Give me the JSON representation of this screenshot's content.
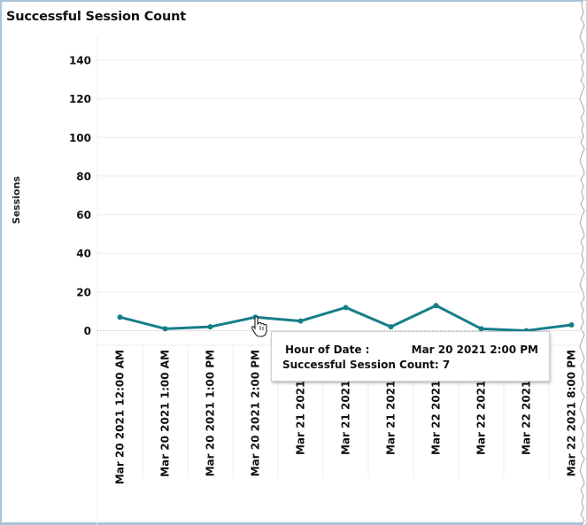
{
  "tooltip": {
    "label1": "Hour of Date :",
    "value1": "Mar 20 2021 2:00 PM",
    "label2": "Successful Session Count:",
    "value2": "7"
  },
  "cursor_icon": "hand-pointer-icon",
  "colors": {
    "line": "#167e8a",
    "grid": "#ececec",
    "zero_line": "#b5b5b5"
  },
  "chart_data": {
    "type": "line",
    "title": "Successful Session Count",
    "xlabel": "",
    "ylabel": "Sessions",
    "ylim": [
      0,
      140
    ],
    "yticks": [
      0,
      20,
      40,
      60,
      80,
      100,
      120,
      140
    ],
    "grid": true,
    "legend": "none",
    "categories": [
      "Mar 20 2021 12:00 AM",
      "Mar 20 2021 1:00 AM",
      "Mar 20 2021 1:00 PM",
      "Mar 20 2021 2:00 PM",
      "Mar 21 2021 1",
      "Mar 21 2021 2",
      "Mar 21 2021 3",
      "Mar 22 2021 1:",
      "Mar 22 2021 2:",
      "Mar 22 2021 3:",
      "Mar 22 2021 8:00 PM"
    ],
    "series": [
      {
        "name": "Successful Session Count",
        "values": [
          7,
          1,
          2,
          7,
          5,
          12,
          2,
          13,
          1,
          0,
          3
        ]
      }
    ],
    "highlighted_point": {
      "category": "Mar 20 2021 2:00 PM",
      "value": 7
    }
  }
}
